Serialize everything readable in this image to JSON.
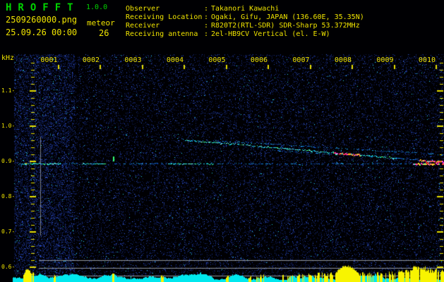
{
  "header": {
    "app_title": "HROFFT",
    "version": "1.0.0",
    "filename": "2509260000.png",
    "mode": "meteor",
    "timestamp": "25.09.26 00:00",
    "count": "26",
    "colon": ":",
    "info": [
      {
        "label": "Observer",
        "value": "Takanori Kawachi"
      },
      {
        "label": "Receiving Location",
        "value": "Ogaki, Gifu, JAPAN (136.60E, 35.35N)"
      },
      {
        "label": "Receiver",
        "value": "R820T2(RTL-SDR) SDR-Sharp 53.372MHz"
      },
      {
        "label": "Receiving antenna",
        "value": "2el-HB9CV Vertical (el. E-W)"
      }
    ]
  },
  "colors": {
    "text_yellow": "#f0e400",
    "title_green": "#00d400",
    "noise_blue": "#16287a",
    "grid_gray": "#aab0b6"
  },
  "chart_data": {
    "type": "heatmap",
    "subtype": "radio-meteor-spectrogram",
    "title": "",
    "ylabel": "kHz",
    "xlabel_unit": "minutes (HHMM)",
    "freq_tick_labels": [
      "1.1-",
      "1.0-",
      "0.9-",
      "0.8-",
      "0.7-",
      "0.6-"
    ],
    "freq_ticks_khz": [
      1.1,
      1.0,
      0.9,
      0.8,
      0.7,
      0.6
    ],
    "ylim_khz": [
      0.585,
      1.204
    ],
    "time_tick_labels": [
      "0001",
      "0002",
      "0003",
      "0004",
      "0005",
      "0006",
      "0007",
      "0008",
      "0009",
      "0010"
    ],
    "time_axis_minutes": [
      1,
      2,
      3,
      4,
      5,
      6,
      7,
      8,
      9,
      10
    ],
    "grid": false,
    "traces": [
      {
        "name": "direct-carrier",
        "points": [
          [
            0.05,
            0.895
          ],
          [
            10.25,
            0.895
          ]
        ],
        "segments": [
          [
            0.05,
            0.14,
            0
          ],
          [
            0.14,
            1.07,
            1
          ],
          [
            0.22,
            0.26,
            2
          ],
          [
            1.07,
            1.55,
            0
          ],
          [
            1.55,
            2.12,
            1
          ],
          [
            2.12,
            3.63,
            0
          ],
          [
            3.63,
            4.72,
            1
          ],
          [
            4.72,
            9.45,
            0
          ],
          [
            9.45,
            10.25,
            2
          ]
        ]
      },
      {
        "name": "meteor-trail-main",
        "points": [
          [
            3.97,
            0.962
          ],
          [
            10.25,
            0.898
          ]
        ],
        "segments": [
          [
            3.97,
            7.55,
            1
          ],
          [
            7.55,
            8.2,
            2
          ],
          [
            8.2,
            9.05,
            1
          ],
          [
            9.05,
            9.6,
            0
          ],
          [
            9.6,
            10.25,
            2
          ]
        ]
      },
      {
        "name": "meteor-trail-upper",
        "points": [
          [
            4.67,
            0.96
          ],
          [
            10.25,
            0.92
          ]
        ],
        "segments": [
          [
            4.67,
            10.25,
            0
          ]
        ]
      },
      {
        "name": "meteor-trail-short",
        "points": [
          [
            6.1,
            0.932
          ],
          [
            7.53,
            0.922
          ]
        ],
        "segments": [
          [
            6.1,
            7.53,
            0
          ]
        ]
      },
      {
        "name": "echo-burst-marker",
        "vertical": true,
        "t": 2.32,
        "f0": 0.914,
        "f1": 0.9,
        "color": "#34ff74"
      }
    ],
    "strength": {
      "base_color": "#00e8ee",
      "peak_color": "#f8f400",
      "regions": [
        {
          "t0": 0.18,
          "t1": 0.38,
          "h": 17,
          "shape": "hump"
        },
        {
          "t0": 0.4,
          "t1": 0.43,
          "h": 15
        },
        {
          "t0": 0.9,
          "t1": 0.95,
          "h": 13
        },
        {
          "t0": 2.3,
          "t1": 2.35,
          "h": 12
        },
        {
          "t0": 3.46,
          "t1": 3.52,
          "h": 12
        },
        {
          "t0": 5.0,
          "t1": 5.06,
          "h": 10
        },
        {
          "t0": 5.54,
          "t1": 5.6,
          "h": 11
        },
        {
          "t0": 5.72,
          "t1": 5.9,
          "h": 11,
          "gap": 0.5
        },
        {
          "t0": 6.32,
          "t1": 7.1,
          "h": 12,
          "gap": 0.55
        },
        {
          "t0": 7.12,
          "t1": 7.55,
          "h": 14,
          "gap": 0.4
        },
        {
          "t0": 7.6,
          "t1": 8.16,
          "h": 21,
          "shape": "hump"
        },
        {
          "t0": 8.16,
          "t1": 9.05,
          "h": 15,
          "gap": 0.45
        },
        {
          "t0": 9.1,
          "t1": 10.25,
          "h": 19,
          "gap": 0.1
        },
        {
          "t0": 9.45,
          "t1": 9.75,
          "h": 23,
          "gap": 0.05
        }
      ]
    }
  }
}
